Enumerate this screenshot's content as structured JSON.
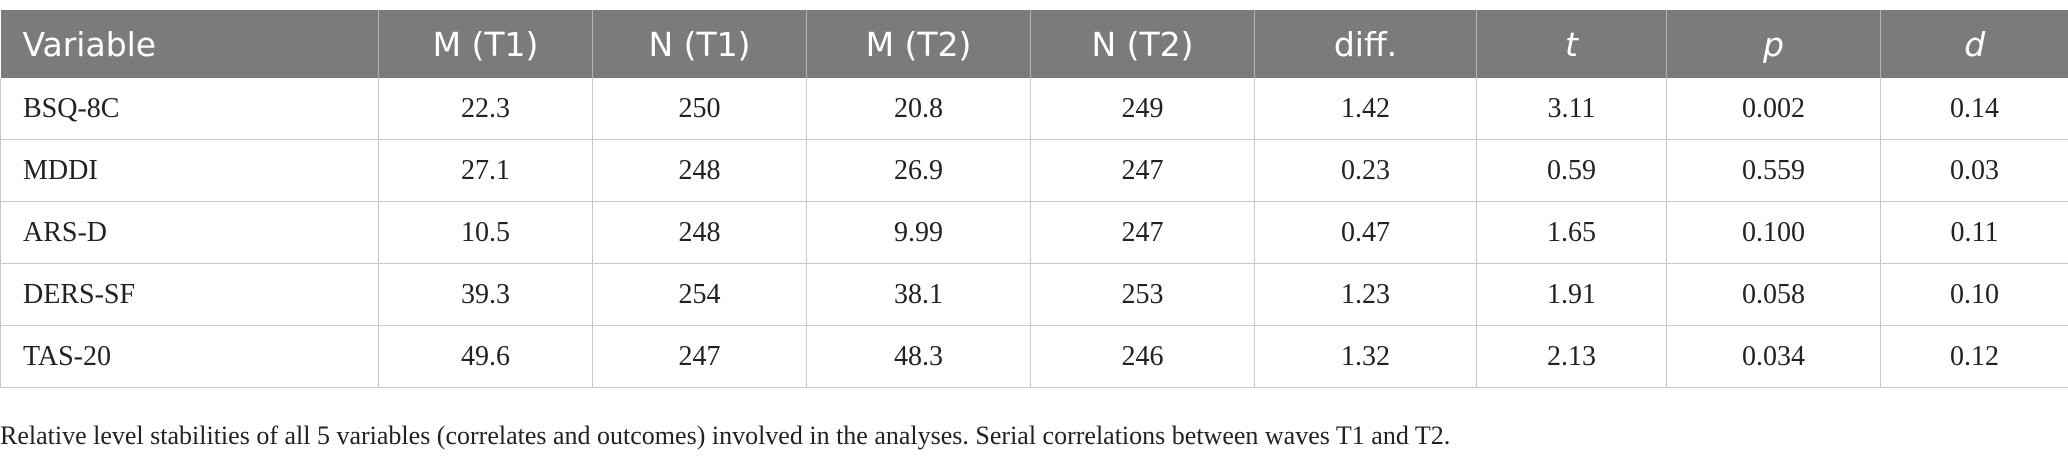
{
  "table": {
    "headers": [
      {
        "label": "Variable",
        "italic": false
      },
      {
        "label": "M (T1)",
        "italic": false
      },
      {
        "label": "N (T1)",
        "italic": false
      },
      {
        "label": "M (T2)",
        "italic": false
      },
      {
        "label": "N (T2)",
        "italic": false
      },
      {
        "label": "diff.",
        "italic": false
      },
      {
        "label": "t",
        "italic": true
      },
      {
        "label": "p",
        "italic": true
      },
      {
        "label": "d",
        "italic": true
      }
    ],
    "rows": [
      [
        "BSQ-8C",
        "22.3",
        "250",
        "20.8",
        "249",
        "1.42",
        "3.11",
        "0.002",
        "0.14"
      ],
      [
        "MDDI",
        "27.1",
        "248",
        "26.9",
        "247",
        "0.23",
        "0.59",
        "0.559",
        "0.03"
      ],
      [
        "ARS-D",
        "10.5",
        "248",
        "9.99",
        "247",
        "0.47",
        "1.65",
        "0.100",
        "0.11"
      ],
      [
        "DERS-SF",
        "39.3",
        "254",
        "38.1",
        "253",
        "1.23",
        "1.91",
        "0.058",
        "0.10"
      ],
      [
        "TAS-20",
        "49.6",
        "247",
        "48.3",
        "246",
        "1.32",
        "2.13",
        "0.034",
        "0.12"
      ]
    ]
  },
  "footnote": "Relative level stabilities of all 5 variables (correlates and outcomes) involved in the analyses. Serial correlations between waves T1 and T2.",
  "colors": {
    "header_background": "#7b7b7b",
    "header_text": "#ffffff",
    "grid_lines": "#c8c8c8"
  }
}
